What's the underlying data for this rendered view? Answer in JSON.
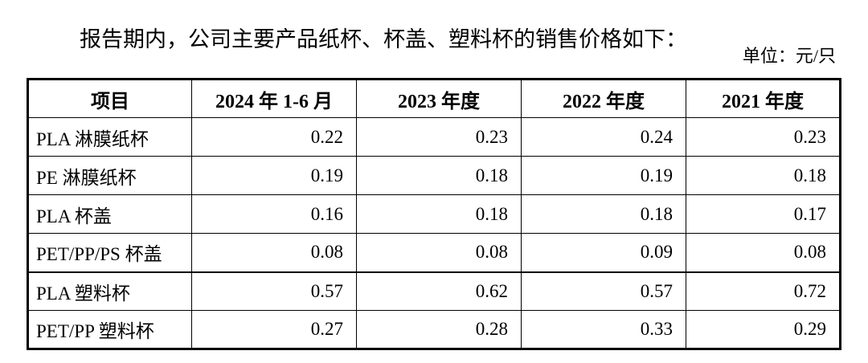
{
  "intro": {
    "text": "报告期内，公司主要产品纸杯、杯盖、塑料杯的销售价格如下："
  },
  "unit_label": "单位：元/只",
  "table": {
    "headers": [
      "项目",
      "2024 年 1-6 月",
      "2023 年度",
      "2022 年度",
      "2021 年度"
    ],
    "rows": [
      {
        "name": "PLA 淋膜纸杯",
        "values": [
          "0.22",
          "0.23",
          "0.24",
          "0.23"
        ],
        "group_start": false
      },
      {
        "name": "PE 淋膜纸杯",
        "values": [
          "0.19",
          "0.18",
          "0.19",
          "0.18"
        ],
        "group_start": false
      },
      {
        "name": "PLA 杯盖",
        "values": [
          "0.16",
          "0.18",
          "0.18",
          "0.17"
        ],
        "group_start": false
      },
      {
        "name": "PET/PP/PS 杯盖",
        "values": [
          "0.08",
          "0.08",
          "0.09",
          "0.08"
        ],
        "group_start": false
      },
      {
        "name": "PLA 塑料杯",
        "values": [
          "0.57",
          "0.62",
          "0.57",
          "0.72"
        ],
        "group_start": true
      },
      {
        "name": "PET/PP 塑料杯",
        "values": [
          "0.27",
          "0.28",
          "0.33",
          "0.29"
        ],
        "group_start": false
      }
    ]
  },
  "colors": {
    "text": "#000000",
    "background": "#ffffff",
    "border": "#000000"
  }
}
